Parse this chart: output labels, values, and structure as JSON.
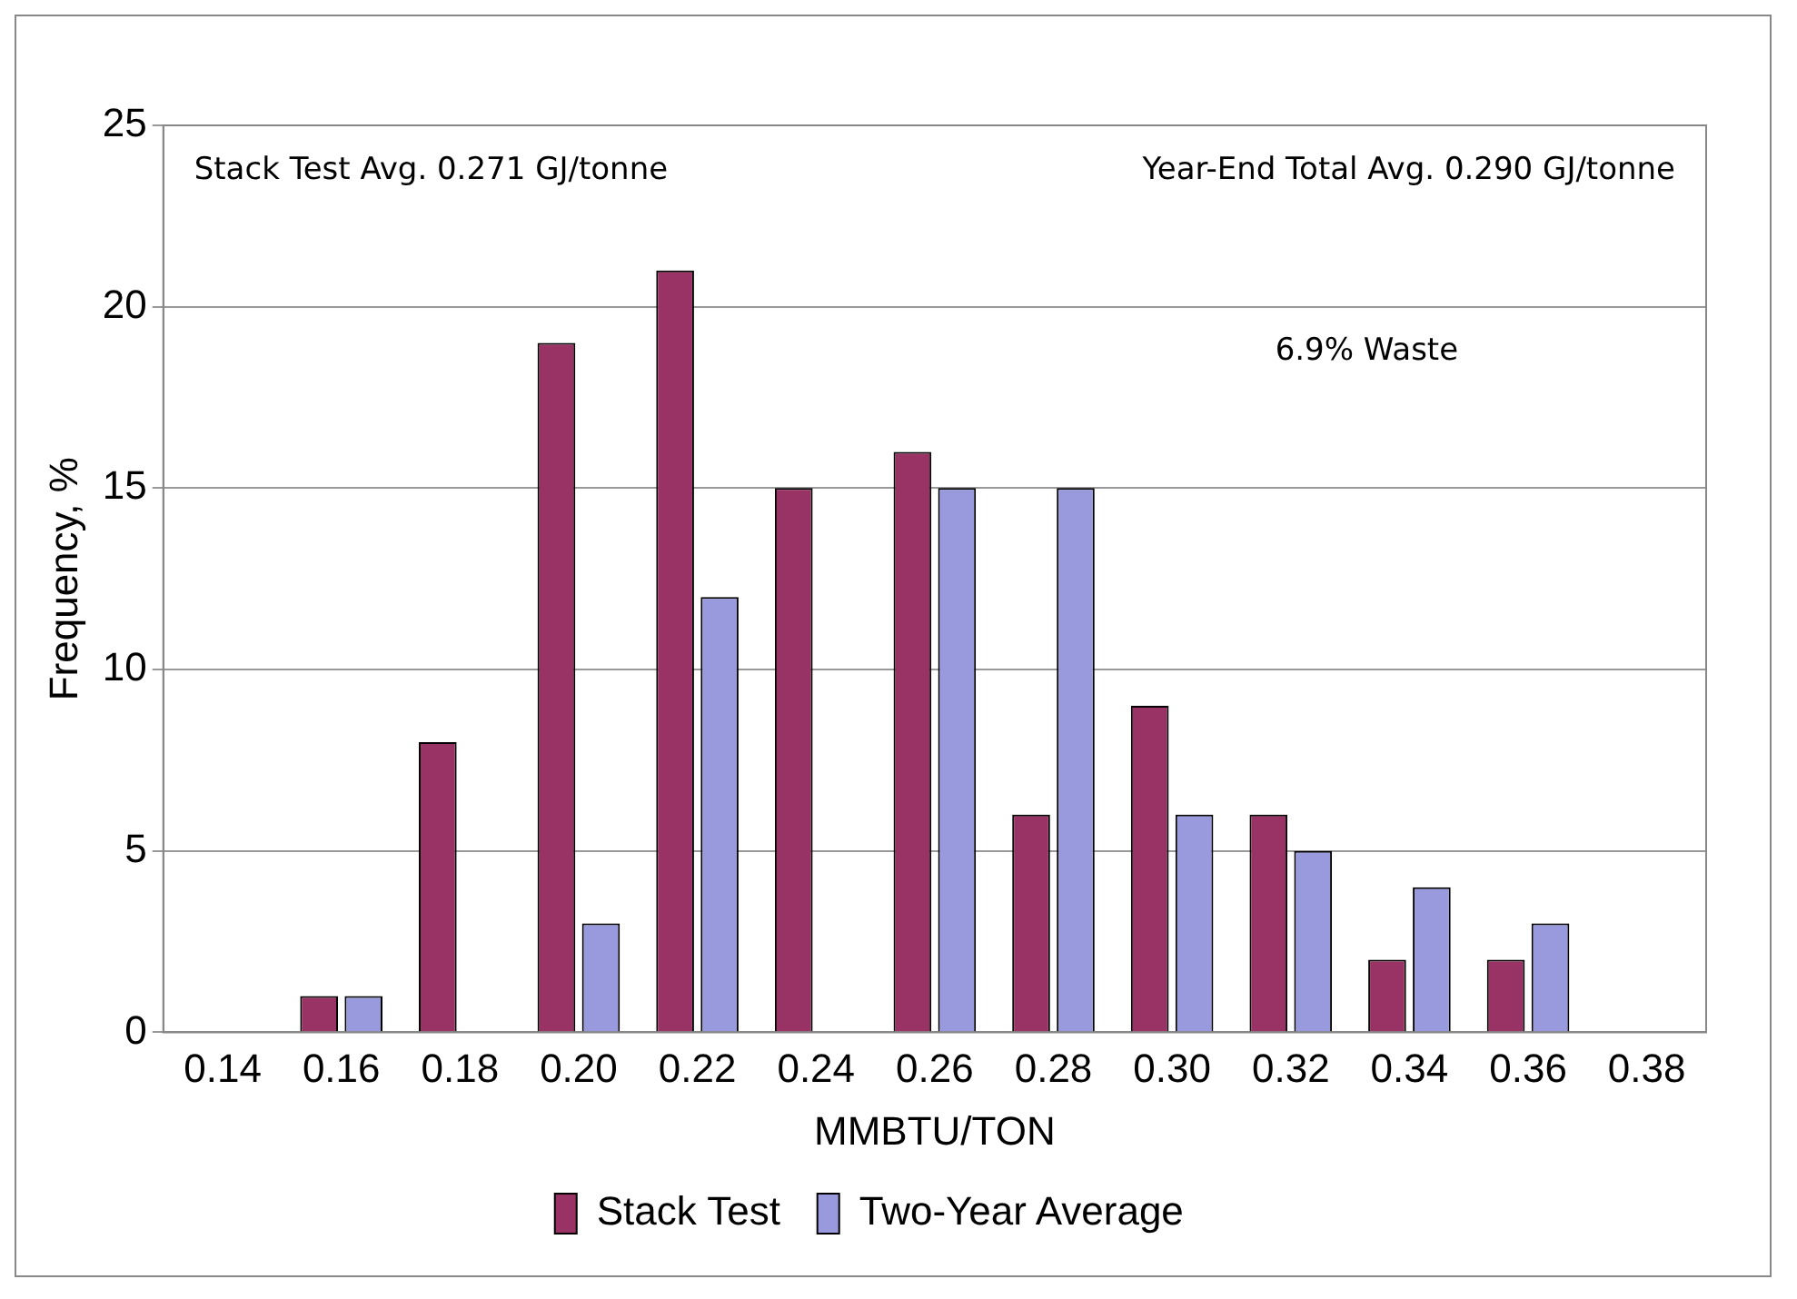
{
  "chart_data": {
    "type": "bar",
    "xlabel": "MMBTU/TON",
    "ylabel": "Frequency, %",
    "categories": [
      "0.14",
      "0.16",
      "0.18",
      "0.20",
      "0.22",
      "0.24",
      "0.26",
      "0.28",
      "0.30",
      "0.32",
      "0.34",
      "0.36",
      "0.38"
    ],
    "series": [
      {
        "name": "Stack Test",
        "color": "#993366",
        "values": [
          0,
          1,
          8,
          19,
          21,
          15,
          16,
          6,
          9,
          6,
          2,
          2,
          0
        ]
      },
      {
        "name": "Two-Year Average",
        "color": "#9999dd",
        "values": [
          0,
          1,
          0,
          3,
          12,
          0,
          15,
          15,
          6,
          5,
          4,
          3,
          0
        ]
      }
    ],
    "ylim": [
      0,
      25
    ],
    "yticks": [
      0,
      5,
      10,
      15,
      20,
      25
    ],
    "grid": "y",
    "legend": "bottom",
    "annotations": [
      "Stack Test Avg. 0.271 GJ/tonne",
      "Year-End Total Avg. 0.290 GJ/tonne",
      "6.9% Waste"
    ]
  }
}
